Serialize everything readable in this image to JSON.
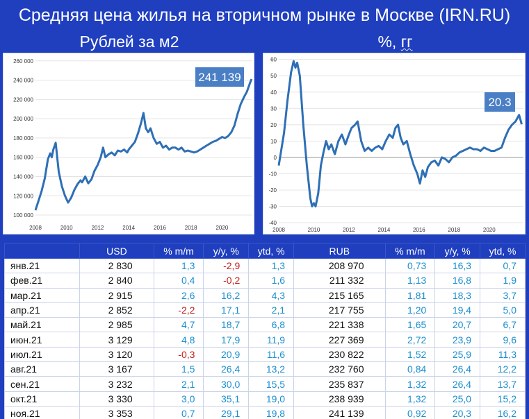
{
  "title": "Средняя цена жилья на вторичном рынке в Москве (IRN.RU)",
  "left_subtitle": "Рублей за м2",
  "right_subtitle_prefix": "%,",
  "right_subtitle_unit": "гг",
  "colors": {
    "background": "#1f3fbf",
    "line": "#2e6fb6",
    "callout": "#4a7fc5",
    "positive": "#1a8fd0",
    "negative": "#c0201c"
  },
  "chart_data": [
    {
      "type": "line",
      "title": "Рублей за м2",
      "x_ticks": [
        "2008",
        "2010",
        "2012",
        "2014",
        "2016",
        "2018",
        "2020"
      ],
      "y_ticks": [
        "100 000",
        "120 000",
        "140 000",
        "160 000",
        "180 000",
        "200 000",
        "220 000",
        "240 000",
        "260 000"
      ],
      "xlim": [
        2008,
        2021.95
      ],
      "ylim": [
        95000,
        262000
      ],
      "callout": "241 139",
      "x": [
        2008.0,
        2008.2,
        2008.4,
        2008.6,
        2008.8,
        2008.95,
        2009.05,
        2009.15,
        2009.3,
        2009.5,
        2009.7,
        2009.9,
        2010.1,
        2010.3,
        2010.5,
        2010.7,
        2010.9,
        2011.0,
        2011.2,
        2011.4,
        2011.6,
        2011.8,
        2012.0,
        2012.2,
        2012.35,
        2012.5,
        2012.7,
        2012.9,
        2013.1,
        2013.3,
        2013.5,
        2013.7,
        2013.9,
        2014.0,
        2014.2,
        2014.4,
        2014.6,
        2014.8,
        2014.95,
        2015.1,
        2015.25,
        2015.4,
        2015.6,
        2015.8,
        2016.0,
        2016.2,
        2016.4,
        2016.6,
        2016.8,
        2017.0,
        2017.2,
        2017.4,
        2017.6,
        2017.8,
        2018.0,
        2018.2,
        2018.4,
        2018.6,
        2018.8,
        2019.0,
        2019.2,
        2019.4,
        2019.6,
        2019.8,
        2020.0,
        2020.2,
        2020.4,
        2020.6,
        2020.8,
        2021.0,
        2021.2,
        2021.4,
        2021.6,
        2021.8,
        2021.9
      ],
      "y": [
        105000,
        115000,
        125000,
        138000,
        158000,
        164000,
        160000,
        168000,
        175000,
        145000,
        130000,
        120000,
        113000,
        118000,
        126000,
        132000,
        136000,
        134000,
        140000,
        133000,
        137000,
        146000,
        152000,
        160000,
        170000,
        160000,
        163000,
        165000,
        162000,
        167000,
        166000,
        168000,
        165000,
        168000,
        172000,
        176000,
        185000,
        196000,
        206000,
        190000,
        186000,
        190000,
        180000,
        174000,
        176000,
        170000,
        172000,
        168000,
        170000,
        170000,
        168000,
        170000,
        166000,
        167000,
        166000,
        165000,
        166000,
        168000,
        170000,
        172000,
        174000,
        176000,
        177000,
        179000,
        181000,
        180000,
        182000,
        186000,
        193000,
        205000,
        215000,
        222000,
        228000,
        237000,
        241139
      ]
    },
    {
      "type": "line",
      "title": "%, гг",
      "x_ticks": [
        "2008",
        "2010",
        "2012",
        "2014",
        "2016",
        "2018",
        "2020"
      ],
      "y_ticks": [
        "-40",
        "-30",
        "-20",
        "-10",
        "0",
        "10",
        "20",
        "30",
        "40",
        "50",
        "60"
      ],
      "xlim": [
        2008,
        2021.95
      ],
      "ylim": [
        -40,
        62
      ],
      "callout": "20.3",
      "x": [
        2008.0,
        2008.15,
        2008.3,
        2008.5,
        2008.7,
        2008.85,
        2008.95,
        2009.05,
        2009.2,
        2009.4,
        2009.6,
        2009.8,
        2009.9,
        2010.0,
        2010.1,
        2010.25,
        2010.4,
        2010.55,
        2010.7,
        2010.85,
        2011.0,
        2011.2,
        2011.4,
        2011.6,
        2011.8,
        2012.0,
        2012.15,
        2012.35,
        2012.5,
        2012.7,
        2012.9,
        2013.1,
        2013.3,
        2013.5,
        2013.7,
        2013.9,
        2014.1,
        2014.3,
        2014.5,
        2014.65,
        2014.8,
        2014.95,
        2015.1,
        2015.3,
        2015.5,
        2015.7,
        2015.9,
        2016.05,
        2016.2,
        2016.35,
        2016.5,
        2016.7,
        2016.9,
        2017.1,
        2017.3,
        2017.5,
        2017.7,
        2017.9,
        2018.1,
        2018.3,
        2018.5,
        2018.7,
        2018.9,
        2019.1,
        2019.3,
        2019.5,
        2019.7,
        2019.9,
        2020.1,
        2020.3,
        2020.5,
        2020.7,
        2020.9,
        2021.1,
        2021.3,
        2021.5,
        2021.7,
        2021.85
      ],
      "y": [
        -5,
        5,
        15,
        35,
        52,
        59,
        55,
        58,
        50,
        20,
        -5,
        -25,
        -30,
        -28,
        -30,
        -22,
        -5,
        3,
        10,
        5,
        8,
        2,
        10,
        14,
        8,
        14,
        18,
        20,
        22,
        10,
        4,
        6,
        4,
        6,
        7,
        5,
        10,
        14,
        12,
        18,
        20,
        12,
        8,
        10,
        2,
        -5,
        -10,
        -16,
        -8,
        -12,
        -6,
        -3,
        -2,
        -5,
        0,
        -1,
        -3,
        0,
        1,
        3,
        4,
        5,
        6,
        5,
        5,
        4,
        6,
        5,
        4,
        4,
        5,
        6,
        12,
        17,
        20,
        22,
        26,
        20.3
      ]
    }
  ],
  "table": {
    "headers": [
      "",
      "USD",
      "% m/m",
      "y/y, %",
      "ytd, %",
      "RUB",
      "% m/m",
      "y/y, %",
      "ytd, %"
    ],
    "rows": [
      [
        "янв.21",
        "2 830",
        "1,3",
        "-2,9",
        "1,3",
        "208 970",
        "0,73",
        "16,3",
        "0,7"
      ],
      [
        "фев.21",
        "2 840",
        "0,4",
        "-0,2",
        "1,6",
        "211 332",
        "1,13",
        "16,8",
        "1,9"
      ],
      [
        "мар.21",
        "2 915",
        "2,6",
        "16,2",
        "4,3",
        "215 165",
        "1,81",
        "18,3",
        "3,7"
      ],
      [
        "апр.21",
        "2 852",
        "-2,2",
        "17,1",
        "2,1",
        "217 755",
        "1,20",
        "19,4",
        "5,0"
      ],
      [
        "май.21",
        "2 985",
        "4,7",
        "18,7",
        "6,8",
        "221 338",
        "1,65",
        "20,7",
        "6,7"
      ],
      [
        "июн.21",
        "3 129",
        "4,8",
        "17,9",
        "11,9",
        "227 369",
        "2,72",
        "23,9",
        "9,6"
      ],
      [
        "июл.21",
        "3 120",
        "-0,3",
        "20,9",
        "11,6",
        "230 822",
        "1,52",
        "25,9",
        "11,3"
      ],
      [
        "авг.21",
        "3 167",
        "1,5",
        "26,4",
        "13,2",
        "232 760",
        "0,84",
        "26,4",
        "12,2"
      ],
      [
        "сен.21",
        "3 232",
        "2,1",
        "30,0",
        "15,5",
        "235 837",
        "1,32",
        "26,4",
        "13,7"
      ],
      [
        "окт.21",
        "3 330",
        "3,0",
        "35,1",
        "19,0",
        "238 939",
        "1,32",
        "25,0",
        "15,2"
      ],
      [
        "ноя.21",
        "3 353",
        "0,7",
        "29,1",
        "19,8",
        "241 139",
        "0,92",
        "20,3",
        "16,2"
      ]
    ]
  }
}
